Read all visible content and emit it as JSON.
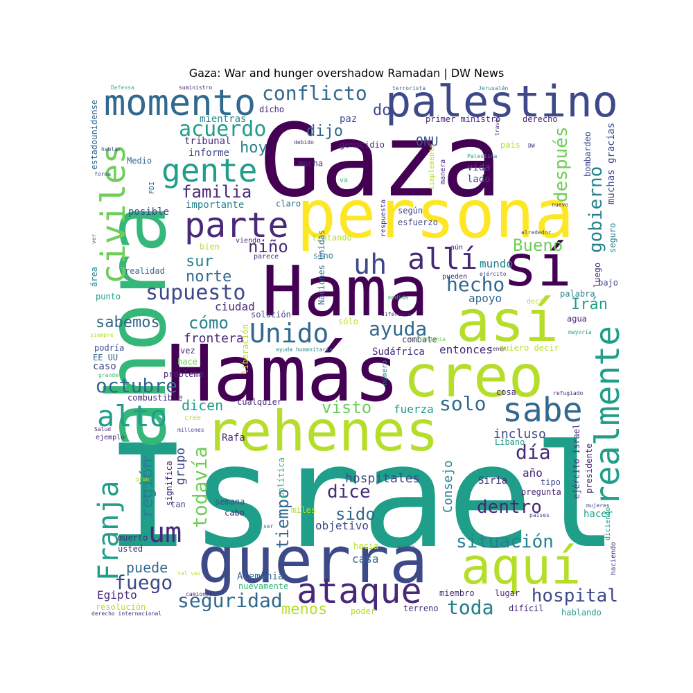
{
  "title": "Gaza: War and hunger overshadow Ramadan | DW News",
  "palette": {
    "dark_purple": "#440154",
    "purple": "#482878",
    "indigo": "#3e4989",
    "blue": "#31688e",
    "teal": "#26828e",
    "sea_green": "#1f9e89",
    "green": "#35b779",
    "light_green": "#6ece58",
    "yellow_green": "#b5de2b",
    "yellow": "#fde725"
  },
  "words": [
    "Israel",
    "Gaza",
    "Hamás",
    "Hama",
    "ahora",
    "persona",
    "guerra",
    "rehenes",
    "creo",
    "así",
    "sí",
    "aquí",
    "palestino",
    "momento",
    "realmente",
    "gente",
    "civiles",
    "parte",
    "uh",
    "allí",
    "ataque",
    "sabe",
    "conflicto",
    "Franja",
    "alto",
    "Unido",
    "um",
    "acuerdo",
    "supuesto",
    "octubre",
    "situación",
    "hospital",
    "seguridad",
    "fuego",
    "ayuda",
    "gobierno",
    "después",
    "hecho",
    "día",
    "dentro",
    "familia",
    "todavía",
    "región",
    "toda",
    "sido",
    "dice",
    "tiempo",
    "visto",
    "solo",
    "Bueno",
    "niño",
    "sur",
    "norte",
    "sabemos",
    "cómo",
    "hoy",
    "dijo",
    "do",
    "ONU",
    "Irán",
    "menos",
    "puede",
    "dicen",
    "hospitales",
    "Consejo",
    "incluso",
    "frontera",
    "ciudad",
    "Egipto",
    "mundo",
    "apoyo",
    "fuerza",
    "grupo",
    "objetivo",
    "casa",
    "toda",
    "Rafa",
    "Alemania",
    "Sudáfrica",
    "entonces",
    "importante",
    "posible",
    "mientras",
    "tribunal",
    "informe",
    "estadounidense",
    "Medio",
    "paz",
    "genocidio",
    "mucha",
    "primer ministro",
    "derecho",
    "muchas gracias",
    "bombardeo",
    "seguro",
    "luego",
    "bajo",
    "vida",
    "lado",
    "Palestina",
    "simplemente",
    "manera",
    "país",
    "DW",
    "según",
    "esfuerzo",
    "respuesta",
    "tratando",
    "claro",
    "viendo",
    "parece",
    "sino",
    "bien",
    "realidad",
    "área",
    "punto",
    "ver",
    "FDI",
    "forma",
    "hablar",
    "Defensa",
    "suministro",
    "terrorista",
    "Jerusalén",
    "dicho",
    "debido",
    "va",
    "través",
    "nuevo",
    "alrededor",
    "aún",
    "pueden",
    "ejército",
    "decir",
    "palabra",
    "agua",
    "mayoría",
    "quiero decir",
    "combate",
    "diferente",
    "medida",
    "Naciones Unidas",
    "solución",
    "sólo",
    "ayuda humanitaria",
    "liberación",
    "Cisjordania",
    "tener",
    "número",
    "vez",
    "podría",
    "EE UU",
    "caso",
    "hace",
    "problema",
    "grande",
    "siempre",
    "combustible",
    "cualquier",
    "cosa",
    "refugiado",
    "cree",
    "millones",
    "Salud",
    "ejemplo",
    "significa",
    "Medio Oriente",
    "gran",
    "tan",
    "semana",
    "cabo",
    "política",
    "miles",
    "Líbano",
    "Siria",
    "año",
    "tipo",
    "presidente",
    "ejército israel",
    "pregunta",
    "mujeres",
    "países",
    "hacer",
    "diciendo",
    "haciendo",
    "ser",
    "hacia",
    "mismo",
    "muerto",
    "usted",
    "tal vez",
    "nuevamente",
    "camiones",
    "resolución",
    "derecho internacional",
    "poder",
    "terreno",
    "miembro",
    "lugar",
    "difícil",
    "hablando"
  ]
}
